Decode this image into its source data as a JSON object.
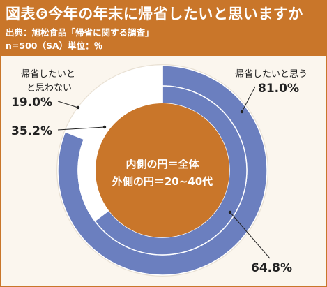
{
  "header": {
    "title": "図表❻今年の年末に帰省したいと思いますか",
    "source": "出典：旭松食品「帰省に関する調査」",
    "meta": "n=500（SA）単位：％"
  },
  "colors": {
    "header": "#c9762a",
    "yes": "#6b7fbf",
    "no": "#ffffff",
    "center": "#c9762a",
    "background": "#fbf6ee"
  },
  "chart_data": {
    "type": "pie",
    "subtype": "double-donut",
    "categories": [
      "帰省したいと思う",
      "帰省したいと思わない"
    ],
    "series": [
      {
        "name": "全体",
        "values": [
          64.8,
          35.2
        ]
      },
      {
        "name": "20~40代",
        "values": [
          81.0,
          19.0
        ]
      }
    ],
    "labels": {
      "yes_name": "帰省したいと思う",
      "yes_outer": "81.0%",
      "no_name_line1": "帰省したいと",
      "no_name_line2": "思わない",
      "no_name_prefix": "と",
      "no_outer": "19.0%",
      "no_inner": "35.2%",
      "yes_inner": "64.8%"
    },
    "center_text": {
      "line1": "内側の円＝全体",
      "line2": "外側の円＝20~40代"
    }
  }
}
